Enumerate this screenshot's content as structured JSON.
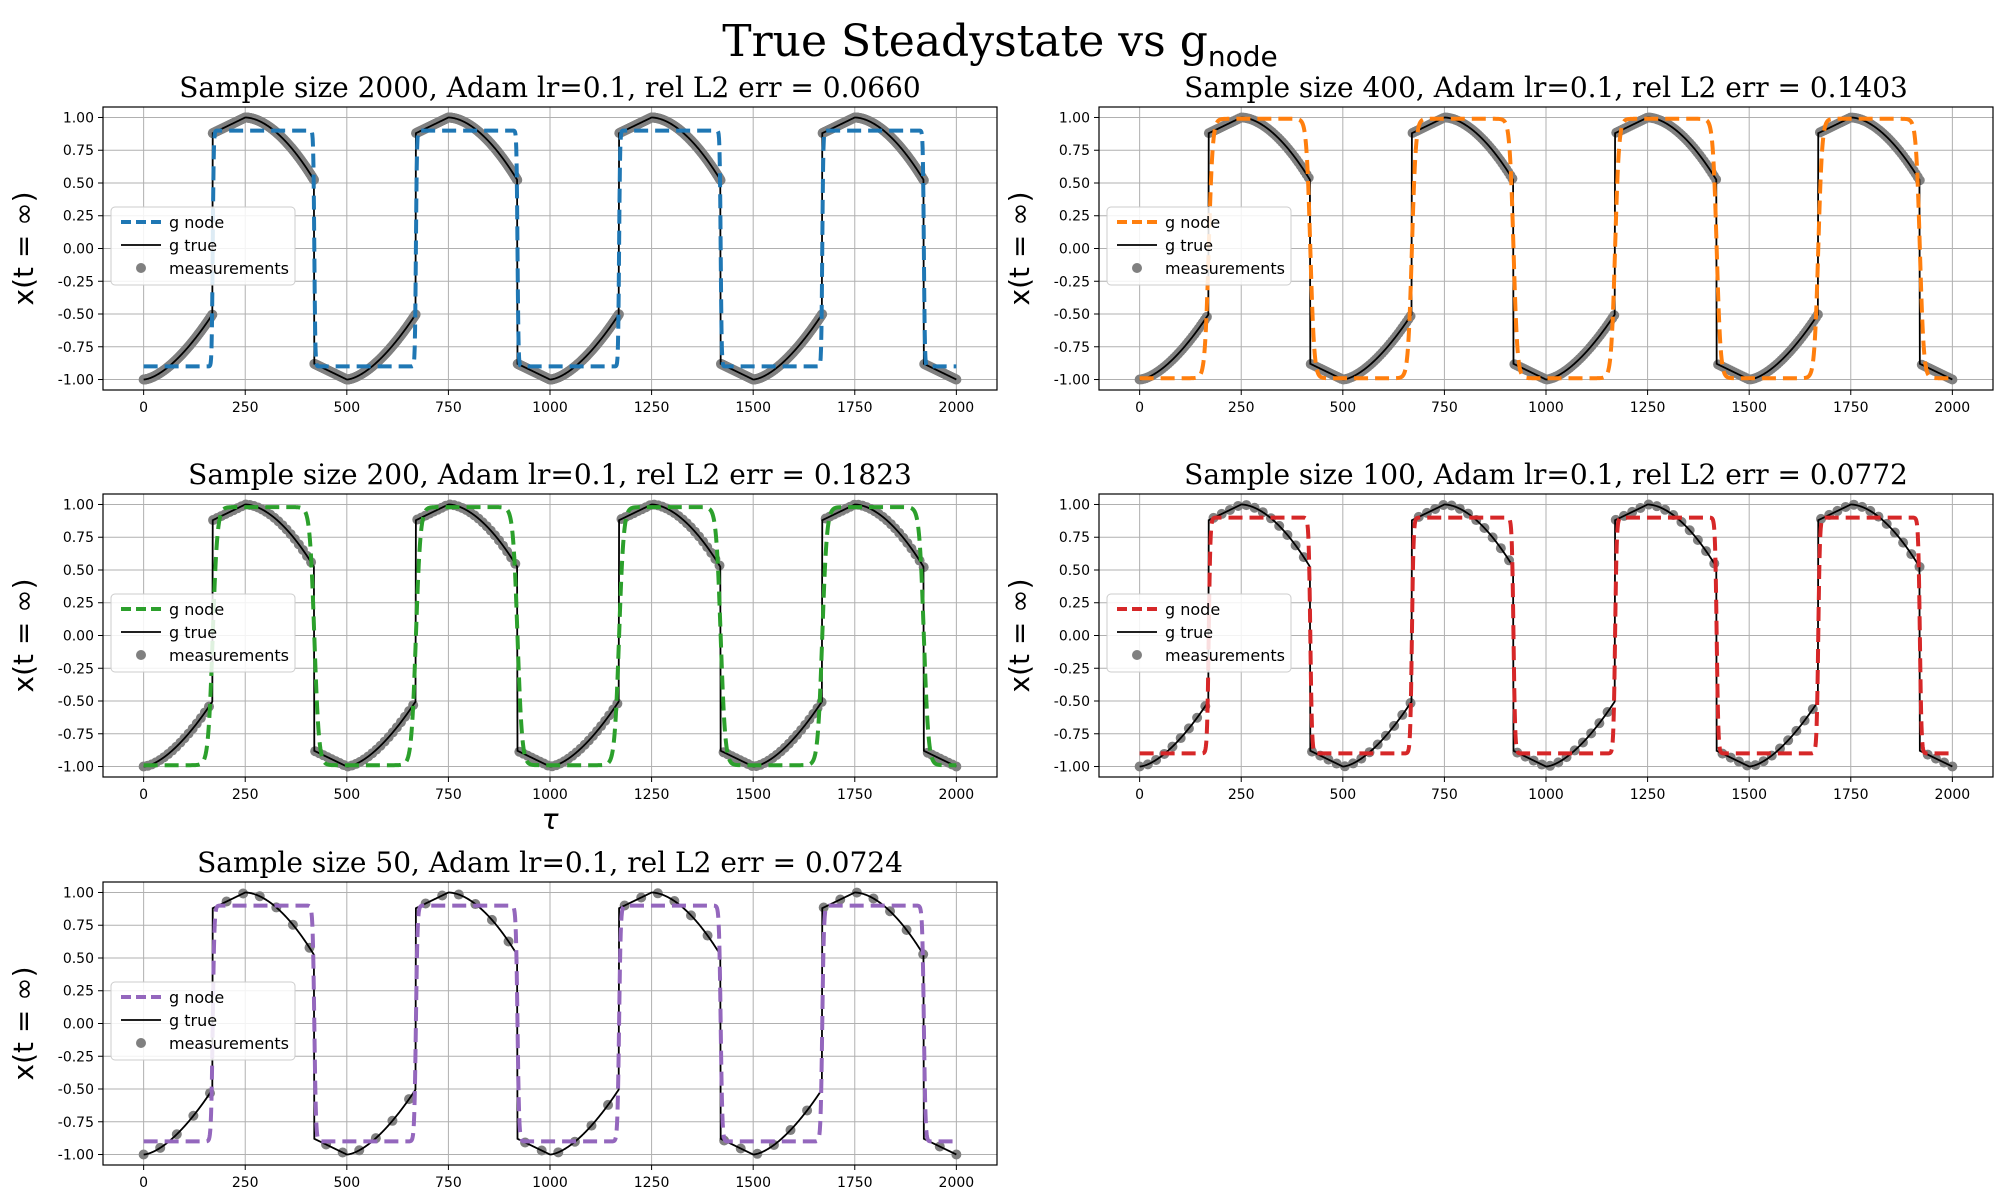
{
  "figure": {
    "suptitle": "True Steadystate vs g",
    "suptitle_subscript": "node"
  },
  "chart_data": [
    {
      "type": "line",
      "title": "Sample size 2000, Adam lr=0.1, rel L2 err = 0.0660",
      "sample_size": 2000,
      "xlabel": "",
      "ylabel": "x(t = ∞)",
      "xlim": [
        -100,
        2100
      ],
      "ylim": [
        -1.08,
        1.08
      ],
      "xticks": [
        0,
        250,
        500,
        750,
        1000,
        1250,
        1500,
        1750,
        2000
      ],
      "yticks": [
        -1.0,
        -0.75,
        -0.5,
        -0.25,
        0.0,
        0.25,
        0.5,
        0.75,
        1.0
      ],
      "grid": true,
      "legend": {
        "position": "center-left",
        "entries": [
          "g node",
          "g true",
          "measurements"
        ]
      },
      "series": [
        {
          "name": "g node",
          "style": "dashed",
          "color": "#1f77b4",
          "model": {
            "low": -0.9,
            "high": 0.9,
            "rise_sharp": 0.03,
            "fall_sharp": 0.03,
            "flat": 0.9
          }
        },
        {
          "name": "g true",
          "style": "solid",
          "color": "#000000"
        },
        {
          "name": "measurements",
          "style": "markers",
          "color": "#808080"
        }
      ]
    },
    {
      "type": "line",
      "title": "Sample size 400, Adam lr=0.1, rel L2 err = 0.1403",
      "sample_size": 400,
      "xlabel": "",
      "ylabel": "x(t = ∞)",
      "xlim": [
        -100,
        2100
      ],
      "ylim": [
        -1.08,
        1.08
      ],
      "xticks": [
        0,
        250,
        500,
        750,
        1000,
        1250,
        1500,
        1750,
        2000
      ],
      "yticks": [
        -1.0,
        -0.75,
        -0.5,
        -0.25,
        0.0,
        0.25,
        0.5,
        0.75,
        1.0
      ],
      "grid": true,
      "legend": {
        "position": "center-left",
        "entries": [
          "g node",
          "g true",
          "measurements"
        ]
      },
      "series": [
        {
          "name": "g node",
          "style": "dashed",
          "color": "#ff7f0e",
          "model": {
            "low": -0.99,
            "high": 0.99,
            "rise_sharp": 0.12,
            "fall_sharp": 0.12,
            "flat": 0.97
          }
        },
        {
          "name": "g true",
          "style": "solid",
          "color": "#000000"
        },
        {
          "name": "measurements",
          "style": "markers",
          "color": "#808080"
        }
      ]
    },
    {
      "type": "line",
      "title": "Sample size 200, Adam lr=0.1, rel L2 err = 0.1823",
      "sample_size": 200,
      "xlabel": "τ",
      "ylabel": "x(t = ∞)",
      "xlim": [
        -100,
        2100
      ],
      "ylim": [
        -1.08,
        1.08
      ],
      "xticks": [
        0,
        250,
        500,
        750,
        1000,
        1250,
        1500,
        1750,
        2000
      ],
      "yticks": [
        -1.0,
        -0.75,
        -0.5,
        -0.25,
        0.0,
        0.25,
        0.5,
        0.75,
        1.0
      ],
      "grid": true,
      "legend": {
        "position": "center-left",
        "entries": [
          "g node",
          "g true",
          "measurements"
        ]
      },
      "series": [
        {
          "name": "g node",
          "style": "dashed",
          "color": "#2ca02c",
          "model": {
            "low": -0.99,
            "high": 0.98,
            "rise_sharp": 0.14,
            "fall_sharp": 0.14,
            "flat": 0.97
          }
        },
        {
          "name": "g true",
          "style": "solid",
          "color": "#000000"
        },
        {
          "name": "measurements",
          "style": "markers",
          "color": "#808080"
        }
      ]
    },
    {
      "type": "line",
      "title": "Sample size 100, Adam lr=0.1, rel L2 err = 0.0772",
      "sample_size": 100,
      "xlabel": "",
      "ylabel": "x(t = ∞)",
      "xlim": [
        -100,
        2100
      ],
      "ylim": [
        -1.08,
        1.08
      ],
      "xticks": [
        0,
        250,
        500,
        750,
        1000,
        1250,
        1500,
        1750,
        2000
      ],
      "yticks": [
        -1.0,
        -0.75,
        -0.5,
        -0.25,
        0.0,
        0.25,
        0.5,
        0.75,
        1.0
      ],
      "grid": true,
      "legend": {
        "position": "center-left",
        "entries": [
          "g node",
          "g true",
          "measurements"
        ]
      },
      "series": [
        {
          "name": "g node",
          "style": "dashed",
          "color": "#d62728",
          "model": {
            "low": -0.9,
            "high": 0.9,
            "rise_sharp": 0.05,
            "fall_sharp": 0.05,
            "flat": 0.9
          }
        },
        {
          "name": "g true",
          "style": "solid",
          "color": "#000000"
        },
        {
          "name": "measurements",
          "style": "markers",
          "color": "#808080"
        }
      ]
    },
    {
      "type": "line",
      "title": "Sample size 50, Adam lr=0.1, rel L2 err = 0.0724",
      "sample_size": 50,
      "xlabel": "",
      "ylabel": "x(t = ∞)",
      "xlim": [
        -100,
        2100
      ],
      "ylim": [
        -1.08,
        1.08
      ],
      "xticks": [
        0,
        250,
        500,
        750,
        1000,
        1250,
        1500,
        1750,
        2000
      ],
      "yticks": [
        -1.0,
        -0.75,
        -0.5,
        -0.25,
        0.0,
        0.25,
        0.5,
        0.75,
        1.0
      ],
      "grid": true,
      "legend": {
        "position": "center-left",
        "entries": [
          "g node",
          "g true",
          "measurements"
        ]
      },
      "series": [
        {
          "name": "g node",
          "style": "dashed",
          "color": "#9467bd",
          "model": {
            "low": -0.9,
            "high": 0.9,
            "rise_sharp": 0.05,
            "fall_sharp": 0.05,
            "flat": 0.9
          }
        },
        {
          "name": "g true",
          "style": "solid",
          "color": "#000000"
        },
        {
          "name": "measurements",
          "style": "markers",
          "color": "#808080"
        }
      ]
    }
  ],
  "true_curve": {
    "description_period": 500,
    "jump_up_tau": [
      170,
      670,
      1170,
      1670
    ],
    "jump_down_tau": [
      420,
      920,
      1420,
      1920
    ],
    "low_branch": {
      "start": -1.0,
      "end_before_jump": -0.5
    },
    "high_branch": {
      "start": 0.88,
      "peak": 1.0,
      "end_before_jump": 0.5
    }
  }
}
